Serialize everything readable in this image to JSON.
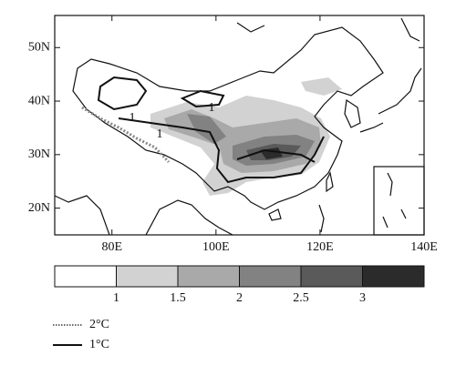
{
  "map": {
    "lonlim": [
      69,
      140
    ],
    "latlim": [
      15,
      56
    ],
    "xticks": [
      {
        "value": 80,
        "label": "80E"
      },
      {
        "value": 100,
        "label": "100E"
      },
      {
        "value": 120,
        "label": "120E"
      },
      {
        "value": 140,
        "label": "140E"
      }
    ],
    "yticks": [
      {
        "value": 20,
        "label": "20N"
      },
      {
        "value": 30,
        "label": "30N"
      },
      {
        "value": 40,
        "label": "40N"
      },
      {
        "value": 50,
        "label": "50N"
      }
    ],
    "contour_labels": [
      "1",
      "1",
      "1"
    ]
  },
  "colorbar": {
    "levels": [
      1,
      1.5,
      2,
      2.5,
      3
    ],
    "colors": [
      "#ffffff",
      "#d2d2d2",
      "#a9a9a9",
      "#828282",
      "#5a5a5a",
      "#2b2b2b"
    ]
  },
  "legend": [
    {
      "label": "2°C",
      "style": "dotted"
    },
    {
      "label": "1°C",
      "style": "solid"
    }
  ]
}
